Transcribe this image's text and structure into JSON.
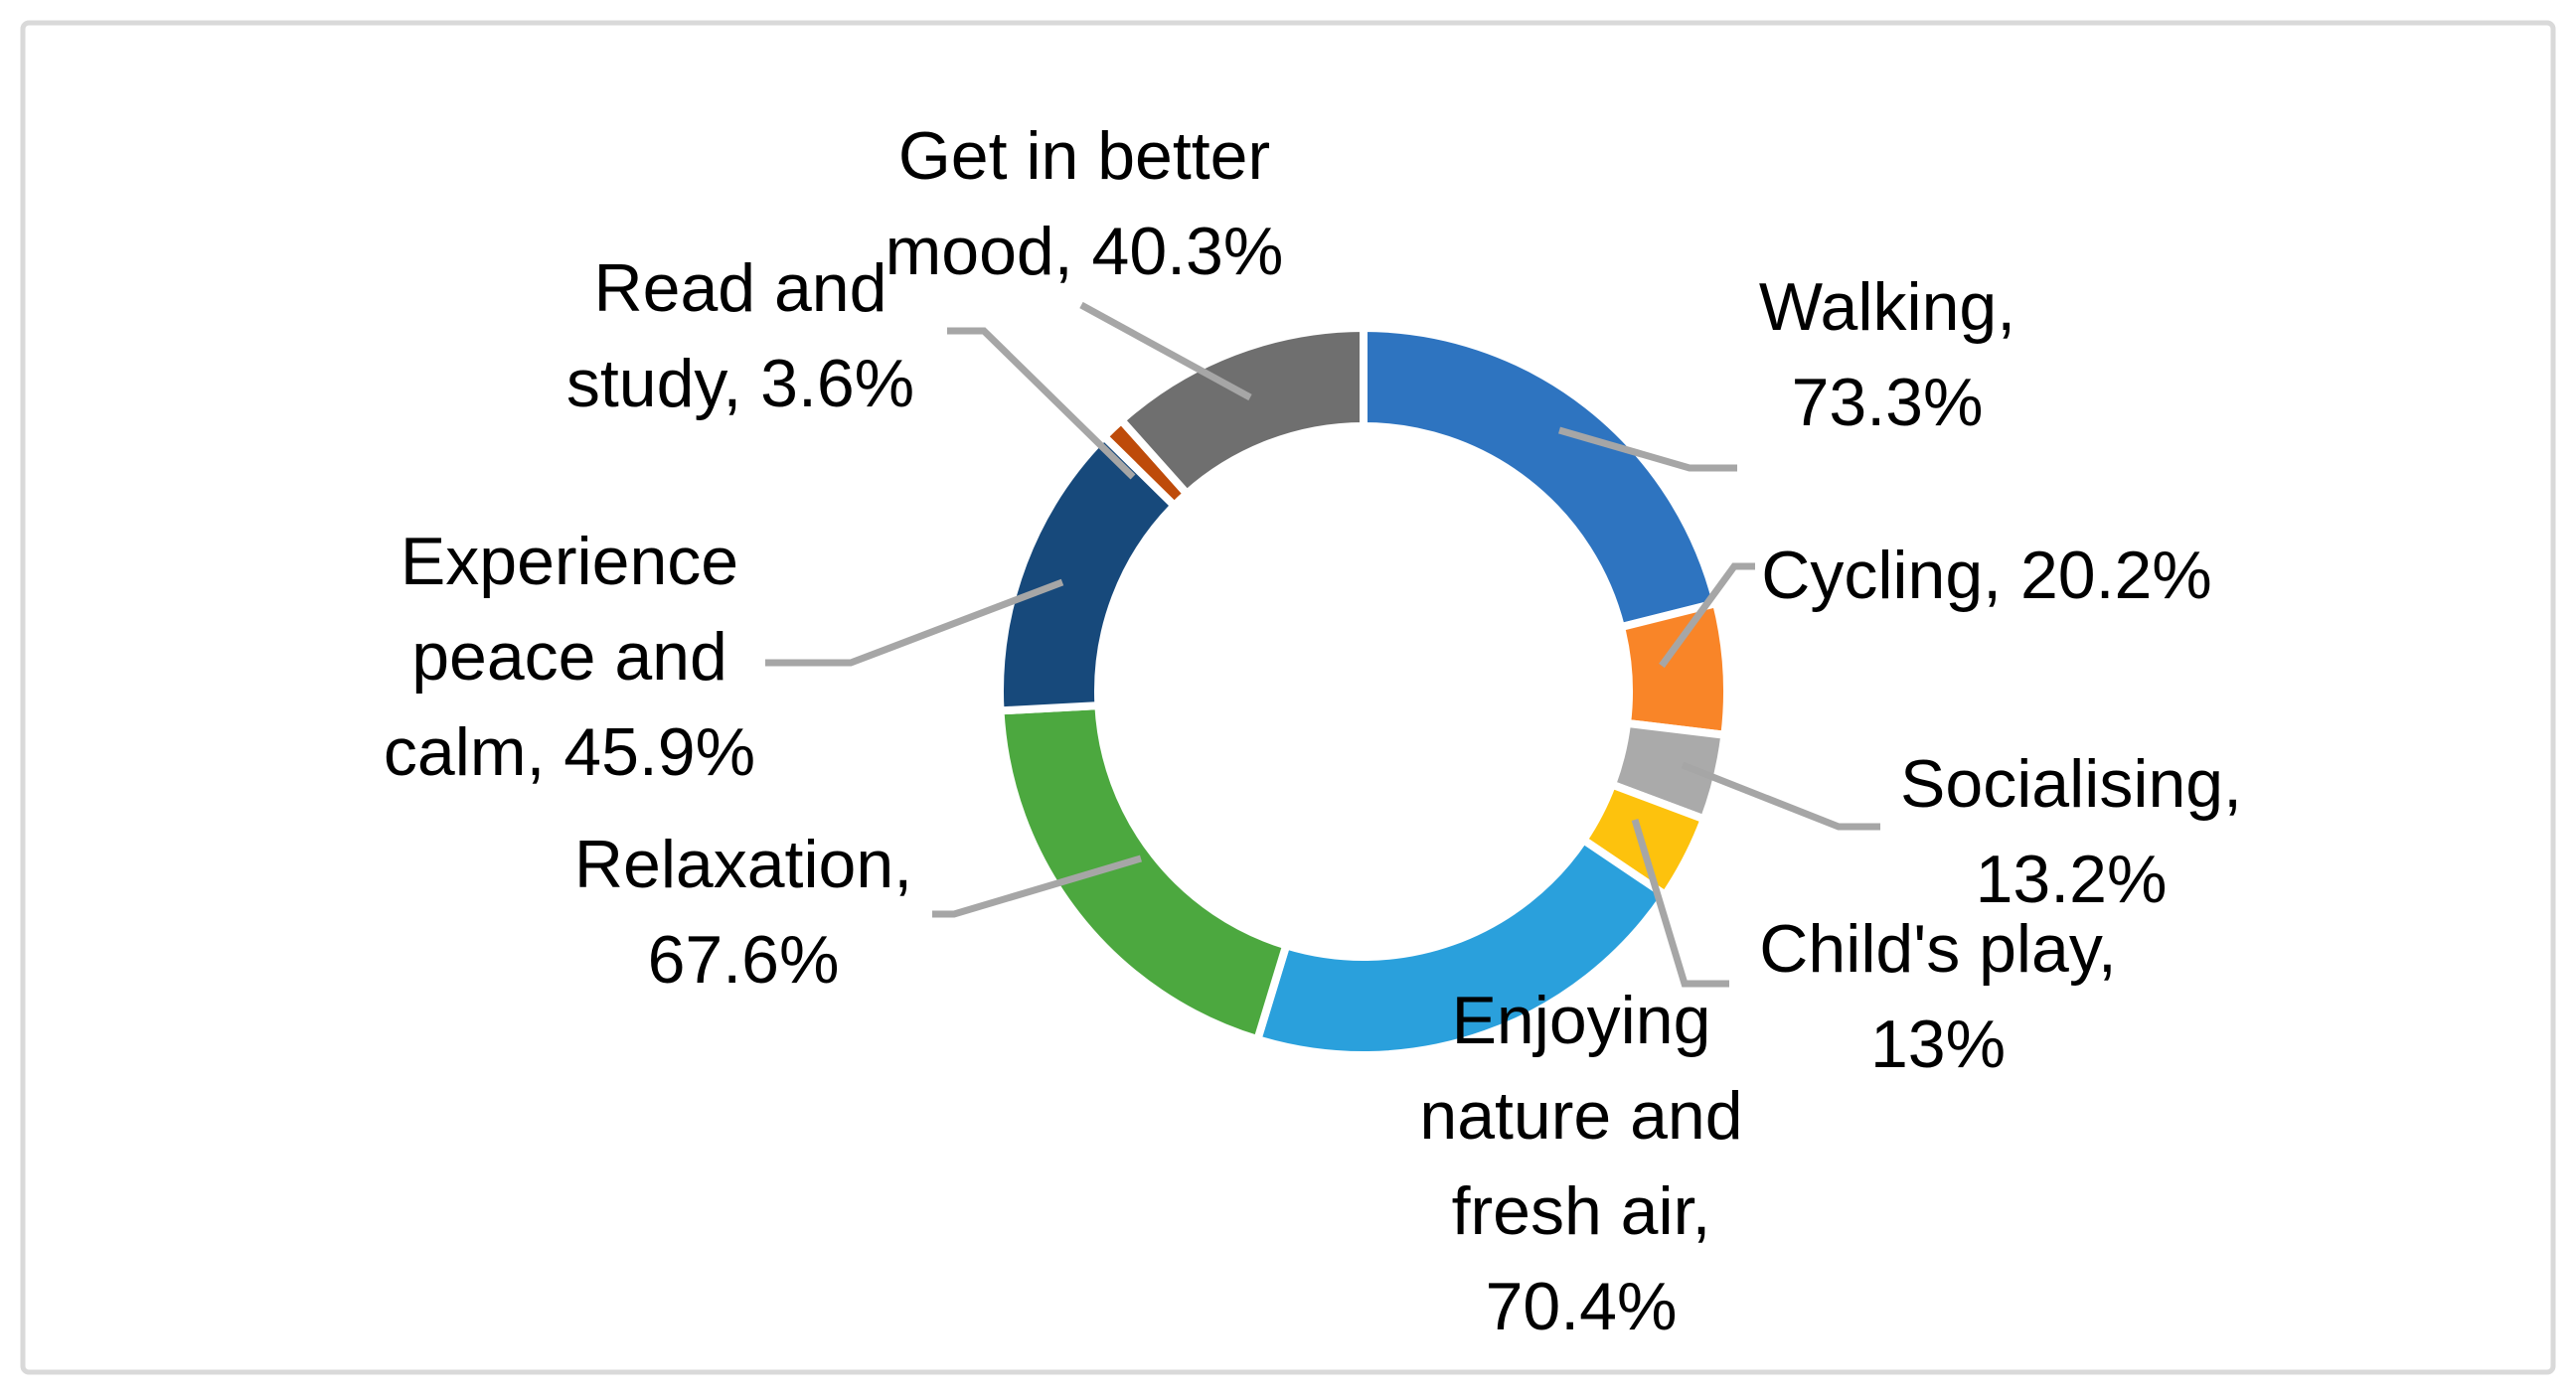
{
  "page": {
    "background": "#FFFFFF",
    "border_color": "#D9D9D9"
  },
  "chart_data": {
    "type": "pie",
    "subtype": "donut",
    "title": "",
    "legend_position": "none",
    "direction": "clockwise",
    "rotation_deg": 0,
    "hole_ratio": 0.73,
    "grid": false,
    "value_unit": "%",
    "categories": [
      "Walking",
      "Cycling",
      "Socialising",
      "Child's play",
      "Enjoying nature and fresh air",
      "Relaxation",
      "Experience peace and calm",
      "Read and study",
      "Get in better mood"
    ],
    "values": [
      73.3,
      20.2,
      13.2,
      13,
      70.4,
      67.6,
      45.9,
      3.6,
      40.3
    ],
    "colors": [
      "#2E74C0",
      "#F98528",
      "#AAAAAA",
      "#FDC20D",
      "#2AA0DC",
      "#4CA83F",
      "#17497B",
      "#BE4B0A",
      "#6F6F6F"
    ],
    "slice_gap_color": "#FFFFFF",
    "label_color": "#000000",
    "leader_line_color": "#A6A6A6",
    "data_labels": [
      {
        "category": "Walking",
        "lines": [
          "Walking,",
          "73.3%"
        ]
      },
      {
        "category": "Cycling",
        "lines": [
          "Cycling, 20.2%"
        ]
      },
      {
        "category": "Socialising",
        "lines": [
          "Socialising,",
          "13.2%"
        ]
      },
      {
        "category": "Child's play",
        "lines": [
          "Child's play,",
          "13%"
        ]
      },
      {
        "category": "Enjoying nature and fresh air",
        "lines": [
          "Enjoying",
          "nature and",
          "fresh air,",
          "70.4%"
        ]
      },
      {
        "category": "Relaxation",
        "lines": [
          "Relaxation,",
          "67.6%"
        ]
      },
      {
        "category": "Experience peace and calm",
        "lines": [
          "Experience",
          "peace and",
          "calm, 45.9%"
        ]
      },
      {
        "category": "Read and study",
        "lines": [
          "Read and",
          "study, 3.6%"
        ]
      },
      {
        "category": "Get in better mood",
        "lines": [
          "Get in better",
          "mood, 40.3%"
        ]
      }
    ]
  }
}
